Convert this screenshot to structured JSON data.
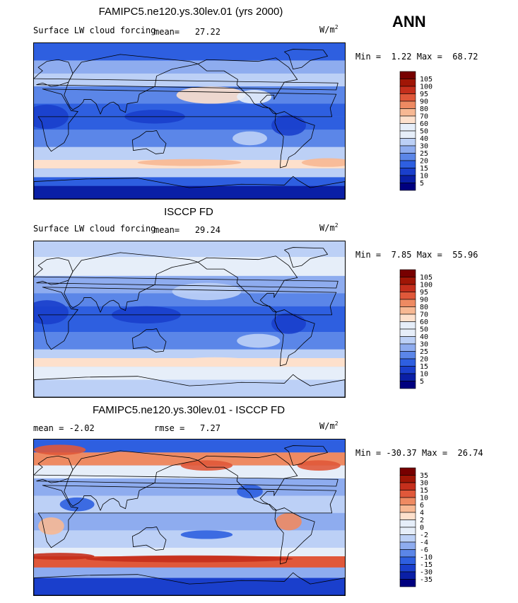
{
  "season": "ANN",
  "palette": [
    "#00007f",
    "#0a1fa6",
    "#1a3fcc",
    "#2e5fe0",
    "#5b86e8",
    "#8eacef",
    "#bcd0f6",
    "#e6eef9",
    "#fde0cc",
    "#f7b893",
    "#ee8a62",
    "#e0583a",
    "#c52f1c",
    "#a01606",
    "#770000"
  ],
  "chart_data": [
    {
      "type": "heatmap",
      "title": "FAMIPC5.ne120.ys.30lev.01 (yrs 2000)",
      "variable": "Surface LW cloud forcing",
      "mean_label": "mean=",
      "mean": "27.22",
      "units": "W/m",
      "units_exp": "2",
      "min_label": "Min =",
      "min": "1.22",
      "max_label": "Max =",
      "max": "68.72",
      "levels": [
        "105",
        "100",
        "95",
        "90",
        "80",
        "70",
        "60",
        "50",
        "40",
        "30",
        "25",
        "20",
        "15",
        "10",
        "5"
      ],
      "pattern": "model"
    },
    {
      "type": "heatmap",
      "title": "ISCCP FD",
      "variable": "Surface LW cloud forcing",
      "mean_label": "mean=",
      "mean": "29.24",
      "units": "W/m",
      "units_exp": "2",
      "min_label": "Min =",
      "min": "7.85",
      "max_label": "Max =",
      "max": "55.96",
      "levels": [
        "105",
        "100",
        "95",
        "90",
        "80",
        "70",
        "60",
        "50",
        "40",
        "30",
        "25",
        "20",
        "15",
        "10",
        "5"
      ],
      "pattern": "obs"
    },
    {
      "type": "heatmap",
      "title": "FAMIPC5.ne120.ys.30lev.01 - ISCCP FD",
      "mean_label": "mean =",
      "mean": "-2.02",
      "rmse_label": "rmse =",
      "rmse": "7.27",
      "units": "W/m",
      "units_exp": "2",
      "min_label": "Min =",
      "min": "-30.37",
      "max_label": "Max =",
      "max": "26.74",
      "levels": [
        "35",
        "30",
        "15",
        "10",
        "6",
        "4",
        "2",
        "0",
        "-2",
        "-4",
        "-6",
        "-10",
        "-15",
        "-30",
        "-35"
      ],
      "pattern": "diff"
    }
  ]
}
